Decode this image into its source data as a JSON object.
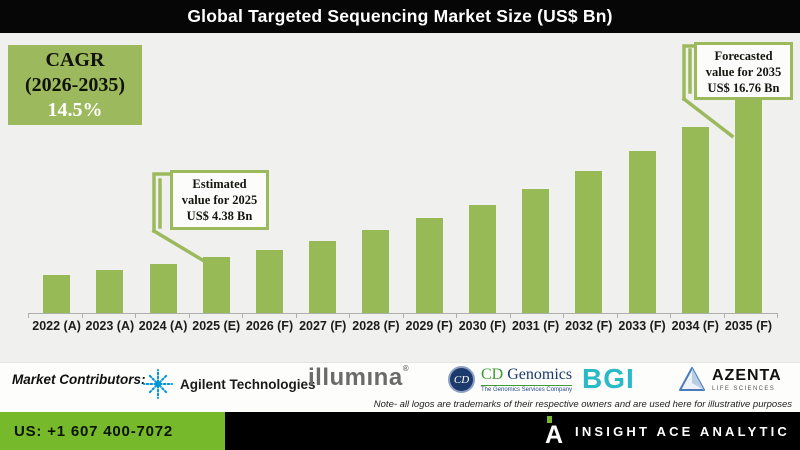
{
  "title": "Global Targeted Sequencing Market Size (US$ Bn)",
  "cagr_box": {
    "line1": "CAGR",
    "line2": "(2026-2035)",
    "line3": "14.5%"
  },
  "callouts": {
    "estimated": {
      "line1": "Estimated",
      "line2": "value for 2025",
      "line3": "US$ 4.38 Bn"
    },
    "forecasted": {
      "line1": "Forecasted",
      "line2": "value for 2035",
      "line3": "US$ 16.76 Bn"
    }
  },
  "chart_data": {
    "type": "bar",
    "title": "Global Targeted Sequencing Market Size (US$ Bn)",
    "categories": [
      "2022 (A)",
      "2023 (A)",
      "2024 (A)",
      "2025 (E)",
      "2026 (F)",
      "2027 (F)",
      "2028 (F)",
      "2029 (F)",
      "2030 (F)",
      "2031 (F)",
      "2032 (F)",
      "2033 (F)",
      "2034 (F)",
      "2035 (F)"
    ],
    "values": [
      3.0,
      3.4,
      3.86,
      4.38,
      4.96,
      5.68,
      6.5,
      7.44,
      8.52,
      9.76,
      11.17,
      12.79,
      14.64,
      16.76
    ],
    "xlabel": "",
    "ylabel": "",
    "ylim": [
      0,
      17
    ],
    "grid": false,
    "legend": "none",
    "bar_color": "#97ba56",
    "annotations": [
      "CAGR (2026-2035) 14.5%",
      "Estimated value for 2025 US$ 4.38 Bn",
      "Forecasted value for 2035 US$ 16.76 Bn"
    ]
  },
  "contributors": {
    "label": "Market Contributors:",
    "agilent": {
      "name": "Agilent Technologies"
    },
    "illumina": {
      "name": "illumına",
      "reg": "®"
    },
    "cd_genomics": {
      "monogram": "CD",
      "name_cd": "CD",
      "name_rest": " Genomics",
      "tagline": "The Genomics Services Company"
    },
    "bgi": {
      "name": "BGI"
    },
    "azenta": {
      "name": "AZENTA",
      "sub": "LIFE SCIENCES"
    }
  },
  "note": "Note- all logos are trademarks of their respective owners and are used here for illustrative purposes",
  "footer": {
    "phone": "US: +1 607 400-7072",
    "brand": "INSIGHT ACE ANALYTIC",
    "logo_letter": "A"
  },
  "colors": {
    "bar_green": "#97ba56",
    "box_green": "#9cba5d",
    "footer_green": "#76b92b",
    "title_bg": "#060606",
    "canvas_bg": "#f0f0ee",
    "bgi_teal": "#29b9c7",
    "agilent_blue": "#0096d6",
    "cd_navy": "#1c3a6c"
  }
}
